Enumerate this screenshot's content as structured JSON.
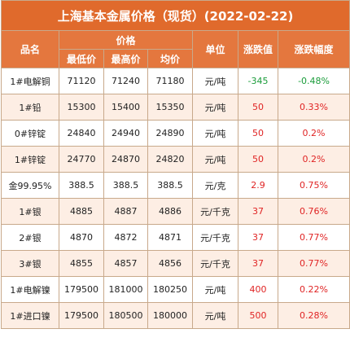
{
  "title": "上海基本金属价格（现货）(2022-02-22)",
  "header": {
    "name": "品名",
    "price_group": "价格",
    "low": "最低价",
    "high": "最高价",
    "avg": "均价",
    "unit": "单位",
    "change": "涨跌值",
    "pct": "涨跌幅度"
  },
  "colors": {
    "up": "#e02424",
    "down": "#1a9c3a",
    "header_bg": "#e4773e"
  },
  "rows": [
    {
      "name": "1#电解铜",
      "low": "71120",
      "high": "71240",
      "avg": "71180",
      "unit": "元/吨",
      "change": "-345",
      "pct": "-0.48%",
      "dir": "down"
    },
    {
      "name": "1#铅",
      "low": "15300",
      "high": "15400",
      "avg": "15350",
      "unit": "元/吨",
      "change": "50",
      "pct": "0.33%",
      "dir": "up"
    },
    {
      "name": "0#锌锭",
      "low": "24840",
      "high": "24940",
      "avg": "24890",
      "unit": "元/吨",
      "change": "50",
      "pct": "0.2%",
      "dir": "up"
    },
    {
      "name": "1#锌锭",
      "low": "24770",
      "high": "24870",
      "avg": "24820",
      "unit": "元/吨",
      "change": "50",
      "pct": "0.2%",
      "dir": "up"
    },
    {
      "name": "金99.95%",
      "low": "388.5",
      "high": "388.5",
      "avg": "388.5",
      "unit": "元/克",
      "change": "2.9",
      "pct": "0.75%",
      "dir": "up"
    },
    {
      "name": "1#银",
      "low": "4885",
      "high": "4887",
      "avg": "4886",
      "unit": "元/千克",
      "change": "37",
      "pct": "0.76%",
      "dir": "up"
    },
    {
      "name": "2#银",
      "low": "4870",
      "high": "4872",
      "avg": "4871",
      "unit": "元/千克",
      "change": "37",
      "pct": "0.77%",
      "dir": "up"
    },
    {
      "name": "3#银",
      "low": "4855",
      "high": "4857",
      "avg": "4856",
      "unit": "元/千克",
      "change": "37",
      "pct": "0.77%",
      "dir": "up"
    },
    {
      "name": "1#电解镍",
      "low": "179500",
      "high": "181000",
      "avg": "180250",
      "unit": "元/吨",
      "change": "400",
      "pct": "0.22%",
      "dir": "up"
    },
    {
      "name": "1#进口镍",
      "low": "179500",
      "high": "180500",
      "avg": "180000",
      "unit": "元/吨",
      "change": "500",
      "pct": "0.28%",
      "dir": "up"
    }
  ]
}
